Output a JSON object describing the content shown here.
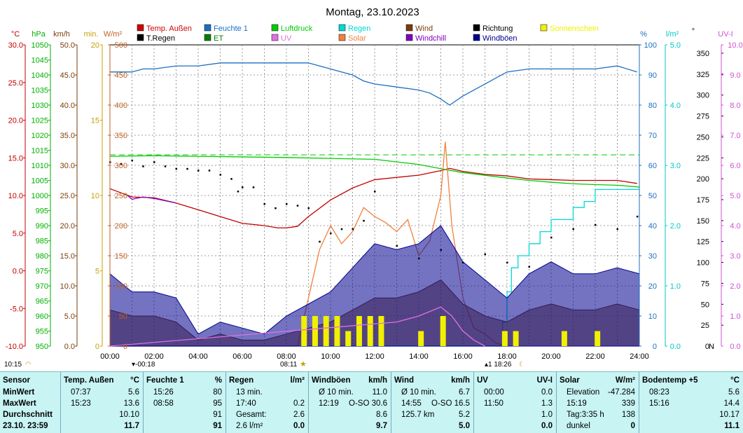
{
  "title": "Montag, 23.10.2023",
  "colors": {
    "temp": "#c00000",
    "humidity": "#1e6fc0",
    "pressure": "#00cc00",
    "rain": "#00d8d8",
    "wind": "#7a3d0a",
    "direction": "#000000",
    "sunshine": "#f0f000",
    "rainday": "#000000",
    "et": "#008000",
    "uv": "#e070e0",
    "solar": "#f08040",
    "windchill": "#8000c0",
    "gust": "#000090"
  },
  "legend": [
    {
      "label": "Temp. Außen",
      "color": "#d00000"
    },
    {
      "label": "Feuchte 1",
      "color": "#1e6fc0"
    },
    {
      "label": "Luftdruck",
      "color": "#00cc00"
    },
    {
      "label": "Regen",
      "color": "#00d8d8"
    },
    {
      "label": "Wind",
      "color": "#7a3d0a"
    },
    {
      "label": "Richtung",
      "color": "#000000"
    },
    {
      "label": "Sonnenschein",
      "color": "#f0f000"
    },
    {
      "label": "T.Regen",
      "color": "#000000"
    },
    {
      "label": "ET",
      "color": "#008000"
    },
    {
      "label": "UV",
      "color": "#e070e0"
    },
    {
      "label": "Solar",
      "color": "#f08040"
    },
    {
      "label": "Windchill",
      "color": "#8000c0"
    },
    {
      "label": "Windböen",
      "color": "#000090"
    }
  ],
  "axes": {
    "temp": {
      "unit": "°C",
      "ticks": [
        "30.0",
        "25.0",
        "20.0",
        "15.0",
        "10.0",
        "5.0",
        "0.0",
        "-5.0",
        "-10.0"
      ]
    },
    "pressure": {
      "unit": "hPa",
      "ticks": [
        "1050",
        "1045",
        "1040",
        "1035",
        "1030",
        "1025",
        "1020",
        "1015",
        "1010",
        "1005",
        "1000",
        "995",
        "990",
        "985",
        "980",
        "975",
        "970",
        "965",
        "960",
        "955",
        "950"
      ]
    },
    "wind": {
      "unit": "km/h",
      "ticks": [
        "50.0",
        "45.0",
        "40.0",
        "35.0",
        "30.0",
        "25.0",
        "20.0",
        "15.0",
        "10.0",
        "5.0",
        "0.0"
      ]
    },
    "sunshine": {
      "unit": "min.",
      "ticks": [
        "20",
        "15",
        "10",
        "5",
        "0"
      ]
    },
    "solar": {
      "unit": "W/m²",
      "ticks": [
        "500",
        "450",
        "400",
        "350",
        "300",
        "250",
        "200",
        "150",
        "100",
        "50",
        "0"
      ]
    },
    "humidity": {
      "unit": "%",
      "ticks": [
        "100",
        "90",
        "80",
        "70",
        "60",
        "50",
        "40",
        "30",
        "20",
        "10",
        "0"
      ]
    },
    "rain": {
      "unit": "l/m²",
      "ticks": [
        "5.0",
        "4.0",
        "3.0",
        "2.0",
        "1.0",
        "0.0"
      ]
    },
    "direction": {
      "unit": "°",
      "ticks": [
        "350",
        "325",
        "300",
        "275",
        "250",
        "225",
        "200",
        "175",
        "150",
        "125",
        "100",
        "75",
        "50",
        "25",
        "0"
      ],
      "extra_tick": "N"
    },
    "uv": {
      "unit": "UV-I",
      "ticks": [
        "10.0",
        "9.0",
        "8.0",
        "7.0",
        "6.0",
        "5.0",
        "4.0",
        "3.0",
        "2.0",
        "1.0",
        "0.0"
      ]
    },
    "time": {
      "ticks": [
        "00:00",
        "02:00",
        "04:00",
        "06:00",
        "08:00",
        "10:00",
        "12:00",
        "14:00",
        "16:00",
        "18:00",
        "20:00",
        "22:00",
        "24:00"
      ]
    }
  },
  "markers": {
    "moonset": "10:15",
    "sunrise_time": "-00:18",
    "sunrise": "08:11",
    "moonrise": "18:26",
    "moonrise_prefix": "1"
  },
  "chart_data": {
    "type": "line",
    "x_unit": "hours",
    "xlim": [
      0,
      24
    ],
    "series": [
      {
        "name": "Temp. Außen",
        "axis": "temp",
        "x": [
          0,
          1,
          2,
          3,
          4,
          5,
          6,
          7,
          7.6,
          8,
          8.5,
          9,
          10,
          11,
          12,
          13,
          14,
          15,
          15.4,
          16,
          17,
          18,
          19,
          20,
          21,
          22,
          23,
          23.9
        ],
        "y": [
          10.9,
          9.8,
          9.7,
          9.0,
          8.1,
          7.2,
          6.3,
          6.0,
          5.7,
          5.7,
          5.9,
          7.2,
          9.4,
          11.0,
          12.1,
          12.4,
          12.7,
          13.3,
          13.6,
          13.2,
          12.8,
          12.6,
          12.2,
          12.1,
          12.0,
          12.0,
          12.0,
          11.6
        ]
      },
      {
        "name": "Feuchte 1",
        "axis": "humidity",
        "x": [
          0,
          0.5,
          1,
          1.5,
          2,
          3,
          4,
          5,
          6,
          7,
          8,
          9,
          9.5,
          10,
          10.5,
          11,
          11.5,
          12,
          13,
          14,
          14.5,
          15,
          15.4,
          16,
          17,
          18,
          19,
          20,
          21,
          22,
          23,
          23.9
        ],
        "y": [
          91,
          91,
          91,
          92,
          92,
          93,
          93,
          94,
          94,
          94,
          94,
          94,
          93,
          92,
          91,
          90,
          88,
          87,
          86,
          85,
          84,
          82,
          80,
          83,
          87,
          91,
          92,
          92,
          92,
          92,
          93,
          91
        ]
      },
      {
        "name": "Luftdruck",
        "axis": "pressure",
        "x": [
          0,
          2,
          4,
          6,
          8,
          10,
          12,
          14,
          15,
          16,
          17,
          18,
          19,
          20,
          21,
          22,
          23,
          24
        ],
        "y": [
          1013,
          1013.2,
          1013.0,
          1012.8,
          1012.6,
          1012.3,
          1012.0,
          1010.3,
          1008.9,
          1007.6,
          1006.7,
          1005.8,
          1005.0,
          1004.4,
          1003.9,
          1003.6,
          1003.4,
          1002.8
        ]
      },
      {
        "name": "Regen",
        "axis": "rain",
        "x": [
          0,
          17.6,
          17.8,
          18,
          18.2,
          18.5,
          19,
          19.5,
          20,
          21,
          21.5,
          22,
          23,
          24
        ],
        "y": [
          0,
          0,
          0.4,
          0.9,
          1.3,
          1.5,
          1.7,
          1.9,
          2.1,
          2.3,
          2.4,
          2.6,
          2.6,
          2.6
        ]
      },
      {
        "name": "Solar",
        "axis": "solar",
        "x": [
          0,
          8.5,
          9,
          9.5,
          10,
          10.5,
          11,
          11.5,
          12,
          12.5,
          13,
          13.5,
          14,
          14.5,
          15,
          15.2,
          15.5,
          16,
          16.5,
          17,
          17.5,
          18
        ],
        "y": [
          0,
          0,
          80,
          160,
          200,
          170,
          190,
          230,
          215,
          205,
          190,
          210,
          150,
          175,
          250,
          339,
          200,
          80,
          30,
          20,
          5,
          0
        ]
      },
      {
        "name": "Wind",
        "axis": "wind",
        "x": [
          0,
          1,
          2,
          3,
          4,
          5,
          6,
          7,
          8,
          9,
          10,
          11,
          12,
          13,
          14,
          15,
          16,
          17,
          18,
          19,
          20,
          21,
          22,
          23,
          24
        ],
        "y": [
          6,
          5,
          5,
          4,
          1,
          2,
          1,
          1,
          2,
          3,
          4,
          6,
          8,
          8,
          9,
          11,
          7,
          5,
          4,
          6,
          7,
          6,
          6,
          7,
          6
        ]
      },
      {
        "name": "Windböen",
        "axis": "wind",
        "x": [
          0,
          1,
          2,
          3,
          4,
          5,
          6,
          7,
          8,
          9,
          10,
          11,
          12,
          13,
          14,
          15,
          16,
          17,
          18,
          19,
          20,
          21,
          22,
          23,
          24
        ],
        "y": [
          12,
          9,
          9,
          8,
          2,
          4,
          3,
          2,
          5,
          7,
          9,
          13,
          17,
          16,
          17,
          20,
          14,
          11,
          8,
          12,
          14,
          12,
          12,
          13,
          12
        ]
      },
      {
        "name": "Sonnenschein",
        "axis": "sunshine",
        "x": [
          8.8,
          9.3,
          9.8,
          10.3,
          10.8,
          11.3,
          11.8,
          12.3,
          14.1,
          15.1,
          17.9,
          18.4,
          20.6,
          22.1
        ],
        "y": [
          2,
          2,
          2,
          2,
          1,
          2,
          2,
          2,
          1,
          2,
          1,
          1,
          1,
          1
        ]
      },
      {
        "name": "Richtung",
        "axis": "direction",
        "x": [
          0,
          0.5,
          1,
          1.5,
          2,
          2.5,
          3,
          3.5,
          4,
          4.5,
          5,
          5.5,
          5.8,
          6,
          6.5,
          7,
          7.5,
          8,
          8.5,
          9,
          9.5,
          10,
          10.5,
          11,
          11.5,
          12,
          13,
          14,
          15,
          16,
          17,
          18,
          19,
          20,
          21,
          22,
          23,
          23.9
        ],
        "y": [
          220,
          218,
          222,
          215,
          220,
          215,
          212,
          212,
          210,
          210,
          205,
          200,
          185,
          190,
          190,
          170,
          165,
          170,
          168,
          165,
          125,
          135,
          140,
          140,
          150,
          185,
          120,
          105,
          115,
          100,
          110,
          100,
          95,
          130,
          140,
          145,
          140,
          155
        ]
      },
      {
        "name": "UV",
        "axis": "uv",
        "x": [
          0,
          13,
          14,
          15,
          15.5,
          16,
          16.5,
          17
        ],
        "y": [
          0,
          0.8,
          1.0,
          1.3,
          1.0,
          0.5,
          0.2,
          0
        ]
      },
      {
        "name": "Windchill",
        "axis": "temp",
        "x": [
          0.8,
          1,
          1.5,
          2,
          2.5,
          3
        ],
        "y": [
          10.0,
          9.5,
          9.8,
          9.6,
          9.3,
          9.0
        ]
      }
    ]
  },
  "stats": {
    "row_labels": [
      "Sensor",
      "MinWert",
      "MaxWert",
      "Durchschnitt",
      "23.10. 23:59"
    ],
    "columns": [
      {
        "header": "Temp. Außen",
        "unit": "°C",
        "rows": [
          [
            "07:37",
            "5.6"
          ],
          [
            "15:23",
            "13.6"
          ],
          [
            "",
            "10.10"
          ],
          [
            "",
            "11.7"
          ]
        ]
      },
      {
        "header": "Feuchte 1",
        "unit": "%",
        "rows": [
          [
            "15:26",
            "80"
          ],
          [
            "08:58",
            "95"
          ],
          [
            "",
            "91"
          ],
          [
            "",
            "91"
          ]
        ]
      },
      {
        "header": "Regen",
        "unit": "l/m²",
        "rows": [
          [
            "13 min.",
            ""
          ],
          [
            "17:40",
            "0.2"
          ],
          [
            "Gesamt:",
            "2.6"
          ],
          [
            "2.6 l/m²",
            "0.0"
          ]
        ]
      },
      {
        "header": "Windböen",
        "unit": "km/h",
        "rows": [
          [
            "Ø 10 min.",
            "11.0"
          ],
          [
            "12:19",
            "O-SO 30.6"
          ],
          [
            "",
            "8.6"
          ],
          [
            "",
            "9.7"
          ]
        ]
      },
      {
        "header": "Wind",
        "unit": "km/h",
        "rows": [
          [
            "Ø 10 min.",
            "6.7"
          ],
          [
            "14:55",
            "O-SO 16.5"
          ],
          [
            "125.7 km",
            "5.2"
          ],
          [
            "",
            "5.0"
          ]
        ]
      },
      {
        "header": "UV",
        "unit": "UV-I",
        "rows": [
          [
            "00:00",
            "0.0"
          ],
          [
            "11:50",
            "1.3"
          ],
          [
            "",
            "1.0"
          ],
          [
            "",
            "0.0"
          ]
        ]
      },
      {
        "header": "Solar",
        "unit": "W/m²",
        "rows": [
          [
            "Elevation",
            "-47.284"
          ],
          [
            "15:19",
            "339"
          ],
          [
            "Tag:3:35 h",
            "138"
          ],
          [
            "dunkel",
            "0"
          ]
        ]
      },
      {
        "header": "Bodentemp +5",
        "unit": "°C",
        "rows": [
          [
            "08:23",
            "5.6"
          ],
          [
            "15:16",
            "14.4"
          ],
          [
            "",
            "10.17"
          ],
          [
            "",
            "11.1"
          ]
        ]
      }
    ]
  }
}
